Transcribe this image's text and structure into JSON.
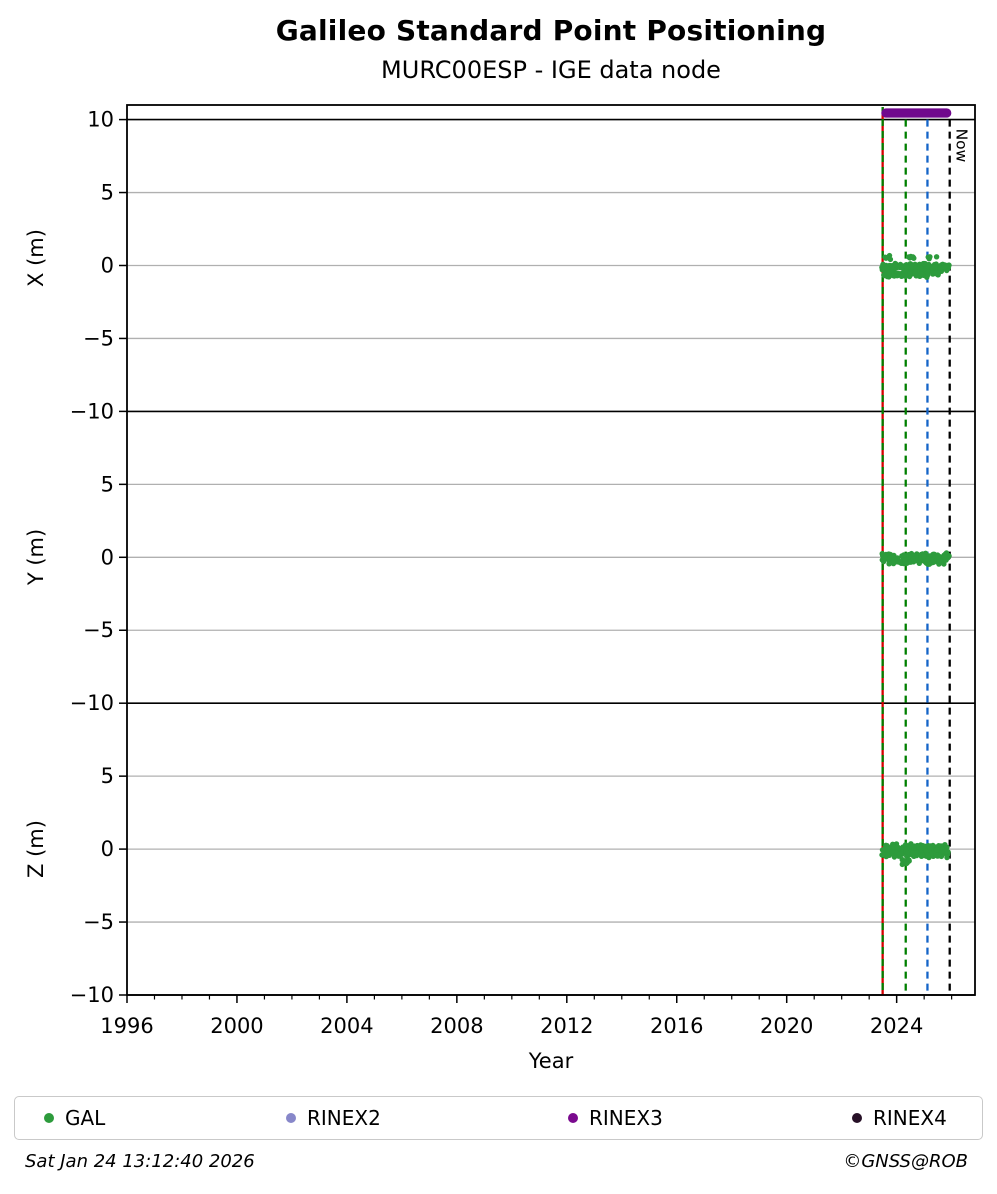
{
  "title": "Galileo Standard Point Positioning",
  "subtitle": "MURC00ESP - IGE data node",
  "footer": {
    "timestamp": "Sat Jan 24 13:12:40 2026",
    "credit": "©GNSS@ROB"
  },
  "legend": {
    "items": [
      {
        "label": "GAL",
        "color": "#2d9b3c"
      },
      {
        "label": "RINEX2",
        "color": "#8787c9"
      },
      {
        "label": "RINEX3",
        "color": "#7a0a8e"
      },
      {
        "label": "RINEX4",
        "color": "#271027"
      }
    ]
  },
  "chart_data": {
    "type": "scatter",
    "xlabel": "Year",
    "x_range": [
      1996,
      2026.85
    ],
    "x_major_ticks": [
      1996,
      2000,
      2004,
      2008,
      2012,
      2016,
      2020,
      2024
    ],
    "x_minor_step": 1,
    "grid_color": "#b0b0b0",
    "frame_color": "#000000",
    "point_color": "#2d9b3c",
    "rinex3_color": "#70098d",
    "now_label": "Now",
    "vlines": [
      {
        "year": 2023.49,
        "color": "#d40000",
        "style": "solid",
        "name": "data-start-line-red"
      },
      {
        "year": 2023.49,
        "color": "#007f00",
        "style": "dashed",
        "name": "data-start-line-green"
      },
      {
        "year": 2024.33,
        "color": "#007f00",
        "style": "dashed",
        "name": "green-reference-line"
      },
      {
        "year": 2025.12,
        "color": "#1464c8",
        "style": "dashed",
        "name": "blue-reference-line"
      },
      {
        "year": 2025.93,
        "color": "#000000",
        "style": "dashed",
        "label": "Now",
        "name": "now-line"
      }
    ],
    "subplots": [
      {
        "ylabel": "X (m)",
        "ylim": [
          -10,
          11
        ],
        "yticks": [
          10,
          5,
          0,
          -5,
          -10
        ],
        "gray_lines": [
          5,
          0,
          -5
        ],
        "black_lines": [
          10,
          -10
        ],
        "rinex3_band": {
          "y": 10.45,
          "x_start": 2023.44,
          "x_end": 2025.99
        },
        "gal_clusters": [
          {
            "y": 0.55,
            "jitter": 0.12,
            "x_start": 2023.5,
            "x_end": 2024.75,
            "n": 13
          },
          {
            "y": 0.55,
            "jitter": 0.1,
            "x_start": 2024.95,
            "x_end": 2025.5,
            "n": 4
          },
          {
            "y": -0.15,
            "jitter": 0.2,
            "x_start": 2023.45,
            "x_end": 2025.95,
            "n": 175
          },
          {
            "y": -0.6,
            "jitter": 0.13,
            "x_start": 2023.45,
            "x_end": 2025.15,
            "n": 70
          },
          {
            "y": -0.6,
            "jitter": 0.12,
            "x_start": 2025.3,
            "x_end": 2025.55,
            "n": 10
          }
        ]
      },
      {
        "ylabel": "Y (m)",
        "ylim": [
          -10,
          10
        ],
        "yticks": [
          5,
          0,
          -5,
          -10
        ],
        "gray_lines": [
          5,
          0,
          -5
        ],
        "black_lines": [
          -10
        ],
        "gal_clusters": [
          {
            "y": -0.1,
            "jitter": 0.27,
            "x_start": 2023.45,
            "x_end": 2025.92,
            "n": 210
          }
        ]
      },
      {
        "ylabel": "Z (m)",
        "ylim": [
          -10,
          10
        ],
        "yticks": [
          5,
          0,
          -5,
          -10
        ],
        "gray_lines": [
          5,
          0,
          -5
        ],
        "black_lines": [
          -10
        ],
        "gal_clusters": [
          {
            "y": -0.12,
            "jitter": 0.32,
            "x_start": 2023.45,
            "x_end": 2025.88,
            "n": 220
          },
          {
            "y": -0.8,
            "jitter": 0.18,
            "x_start": 2024.15,
            "x_end": 2024.5,
            "n": 12
          }
        ]
      }
    ]
  }
}
